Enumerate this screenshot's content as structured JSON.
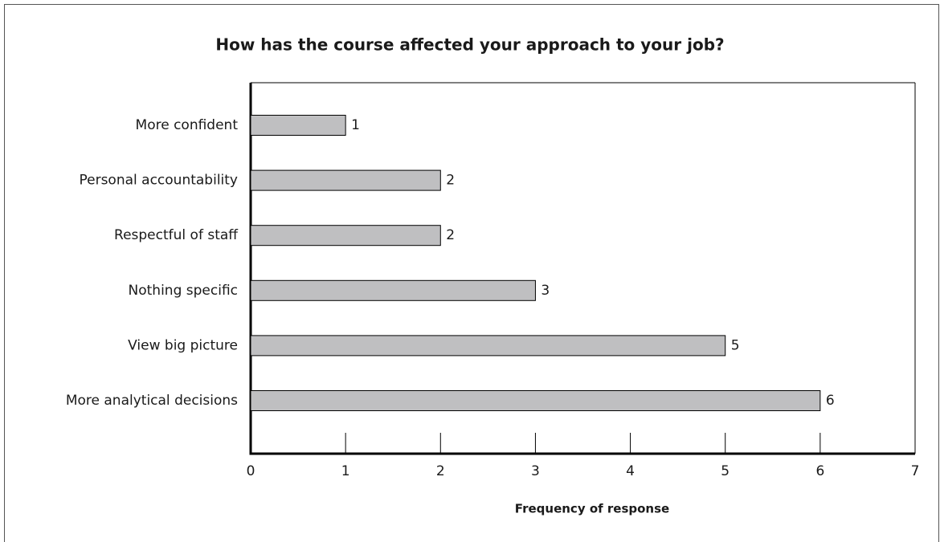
{
  "chart_data": {
    "type": "bar",
    "orientation": "horizontal",
    "title": "How has the course affected your approach to your job?",
    "xlabel": "Frequency of response",
    "categories": [
      "More confident",
      "Personal accountability",
      "Respectful of staff",
      "Nothing specific",
      "View big picture",
      "More analytical decisions"
    ],
    "values": [
      1,
      2,
      2,
      3,
      5,
      6
    ],
    "color": "#bfbfc1",
    "xlim": [
      0,
      7
    ],
    "xticks": [
      0,
      1,
      2,
      3,
      4,
      5,
      6,
      7
    ]
  }
}
